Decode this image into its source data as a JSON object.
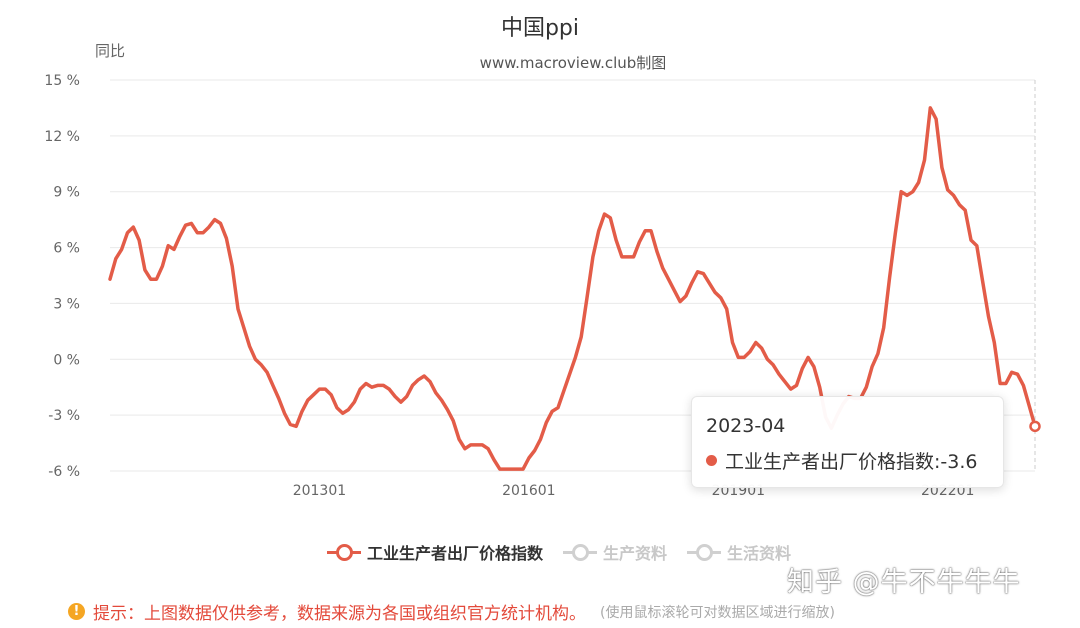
{
  "title": "中国ppi",
  "subtitle": "www.macroview.club制图",
  "chart_data": {
    "type": "line",
    "ylabel": "同比",
    "ylim": [
      -6,
      15
    ],
    "y_ticks": [
      "15 %",
      "12 %",
      "9 %",
      "6 %",
      "3 %",
      "0 %",
      "-3 %",
      "-6 %"
    ],
    "x_ticks": [
      "201301",
      "201601",
      "201901",
      "202201"
    ],
    "x_range": [
      "2010-01",
      "2023-04"
    ],
    "grid": true,
    "legend_position": "bottom",
    "series": [
      {
        "name": "工业生产者出厂价格指数",
        "color": "#e35c48",
        "active": true,
        "x": [
          "2010-01",
          "2010-02",
          "2010-03",
          "2010-04",
          "2010-05",
          "2010-06",
          "2010-07",
          "2010-08",
          "2010-09",
          "2010-10",
          "2010-11",
          "2010-12",
          "2011-01",
          "2011-02",
          "2011-03",
          "2011-04",
          "2011-05",
          "2011-06",
          "2011-07",
          "2011-08",
          "2011-09",
          "2011-10",
          "2011-11",
          "2011-12",
          "2012-01",
          "2012-02",
          "2012-03",
          "2012-04",
          "2012-05",
          "2012-06",
          "2012-07",
          "2012-08",
          "2012-09",
          "2012-10",
          "2012-11",
          "2012-12",
          "2013-01",
          "2013-02",
          "2013-03",
          "2013-04",
          "2013-05",
          "2013-06",
          "2013-07",
          "2013-08",
          "2013-09",
          "2013-10",
          "2013-11",
          "2013-12",
          "2014-01",
          "2014-02",
          "2014-03",
          "2014-04",
          "2014-05",
          "2014-06",
          "2014-07",
          "2014-08",
          "2014-09",
          "2014-10",
          "2014-11",
          "2014-12",
          "2015-01",
          "2015-02",
          "2015-03",
          "2015-04",
          "2015-05",
          "2015-06",
          "2015-07",
          "2015-08",
          "2015-09",
          "2015-10",
          "2015-11",
          "2015-12",
          "2016-01",
          "2016-02",
          "2016-03",
          "2016-04",
          "2016-05",
          "2016-06",
          "2016-07",
          "2016-08",
          "2016-09",
          "2016-10",
          "2016-11",
          "2016-12",
          "2017-01",
          "2017-02",
          "2017-03",
          "2017-04",
          "2017-05",
          "2017-06",
          "2017-07",
          "2017-08",
          "2017-09",
          "2017-10",
          "2017-11",
          "2017-12",
          "2018-01",
          "2018-02",
          "2018-03",
          "2018-04",
          "2018-05",
          "2018-06",
          "2018-07",
          "2018-08",
          "2018-09",
          "2018-10",
          "2018-11",
          "2018-12",
          "2019-01",
          "2019-02",
          "2019-03",
          "2019-04",
          "2019-05",
          "2019-06",
          "2019-07",
          "2019-08",
          "2019-09",
          "2019-10",
          "2019-11",
          "2019-12",
          "2020-01",
          "2020-02",
          "2020-03",
          "2020-04",
          "2020-05",
          "2020-06",
          "2020-07",
          "2020-08",
          "2020-09",
          "2020-10",
          "2020-11",
          "2020-12",
          "2021-01",
          "2021-02",
          "2021-03",
          "2021-04",
          "2021-05",
          "2021-06",
          "2021-07",
          "2021-08",
          "2021-09",
          "2021-10",
          "2021-11",
          "2021-12",
          "2022-01",
          "2022-02",
          "2022-03",
          "2022-04",
          "2022-05",
          "2022-06",
          "2022-07",
          "2022-08",
          "2022-09",
          "2022-10",
          "2022-11",
          "2022-12",
          "2023-01",
          "2023-02",
          "2023-03",
          "2023-04"
        ],
        "y": [
          4.3,
          5.4,
          5.9,
          6.8,
          7.1,
          6.4,
          4.8,
          4.3,
          4.3,
          5.0,
          6.1,
          5.9,
          6.6,
          7.2,
          7.3,
          6.8,
          6.8,
          7.1,
          7.5,
          7.3,
          6.5,
          5.0,
          2.7,
          1.7,
          0.7,
          0.0,
          -0.3,
          -0.7,
          -1.4,
          -2.1,
          -2.9,
          -3.5,
          -3.6,
          -2.8,
          -2.2,
          -1.9,
          -1.6,
          -1.6,
          -1.9,
          -2.6,
          -2.9,
          -2.7,
          -2.3,
          -1.6,
          -1.3,
          -1.5,
          -1.4,
          -1.4,
          -1.6,
          -2.0,
          -2.3,
          -2.0,
          -1.4,
          -1.1,
          -0.9,
          -1.2,
          -1.8,
          -2.2,
          -2.7,
          -3.3,
          -4.3,
          -4.8,
          -4.6,
          -4.6,
          -4.6,
          -4.8,
          -5.4,
          -5.9,
          -5.9,
          -5.9,
          -5.9,
          -5.9,
          -5.3,
          -4.9,
          -4.3,
          -3.4,
          -2.8,
          -2.6,
          -1.7,
          -0.8,
          0.1,
          1.2,
          3.3,
          5.5,
          6.9,
          7.8,
          7.6,
          6.4,
          5.5,
          5.5,
          5.5,
          6.3,
          6.9,
          6.9,
          5.8,
          4.9,
          4.3,
          3.7,
          3.1,
          3.4,
          4.1,
          4.7,
          4.6,
          4.1,
          3.6,
          3.3,
          2.7,
          0.9,
          0.1,
          0.1,
          0.4,
          0.9,
          0.6,
          0.0,
          -0.3,
          -0.8,
          -1.2,
          -1.6,
          -1.4,
          -0.5,
          0.1,
          -0.4,
          -1.5,
          -3.1,
          -3.7,
          -3.0,
          -2.4,
          -2.0,
          -2.1,
          -2.1,
          -1.5,
          -0.4,
          0.3,
          1.7,
          4.4,
          6.8,
          9.0,
          8.8,
          9.0,
          9.5,
          10.7,
          13.5,
          12.9,
          10.3,
          9.1,
          8.8,
          8.3,
          8.0,
          6.4,
          6.1,
          4.2,
          2.3,
          0.9,
          -1.3,
          -1.3,
          -0.7,
          -0.8,
          -1.4,
          -2.5,
          -3.6
        ]
      },
      {
        "name": "生产资料",
        "color": "#cccccc",
        "active": false
      },
      {
        "name": "生活资料",
        "color": "#cccccc",
        "active": false
      }
    ]
  },
  "tooltip": {
    "date": "2023-04",
    "text": "工业生产者出厂价格指数:-3.6"
  },
  "watermark": "知乎 @牛不牛牛牛",
  "footer": {
    "icon": "warning-icon",
    "notice": "提示：上图数据仅供参考，数据来源为各国或组织官方统计机构。",
    "hint": "(使用鼠标滚轮可对数据区域进行缩放)"
  }
}
